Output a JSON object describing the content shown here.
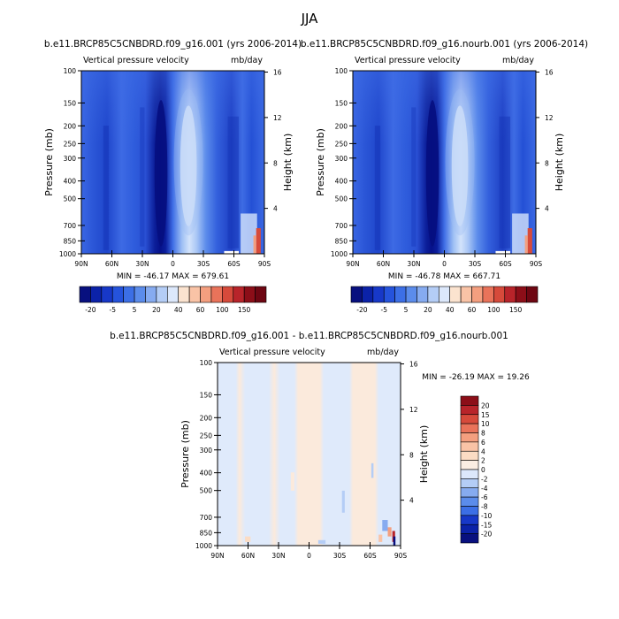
{
  "figure": {
    "title": "JJA"
  },
  "colors": {
    "axis": "#000000",
    "background": "#ffffff"
  },
  "chart_data": [
    {
      "id": "panel-a",
      "type": "heatmap",
      "title": "b.e11.BRCP85C5CNBDRD.f09_g16.001 (yrs 2006-2014)",
      "left_label": "Vertical pressure velocity",
      "right_label": "mb/day",
      "ylabel": "Pressure (mb)",
      "ylabel_right": "Height (km)",
      "x_ticks": [
        "90N",
        "60N",
        "30N",
        "0",
        "30S",
        "60S",
        "90S"
      ],
      "x_tick_values": [
        90,
        60,
        30,
        0,
        -30,
        -60,
        -90
      ],
      "y_ticks": [
        "100",
        "150",
        "200",
        "250",
        "300",
        "400",
        "500",
        "700",
        "850",
        "1000"
      ],
      "y_tick_values": [
        100,
        150,
        200,
        250,
        300,
        400,
        500,
        700,
        850,
        1000
      ],
      "y_scale": "log",
      "ylim": [
        100,
        1000
      ],
      "xlim": [
        90,
        -90
      ],
      "height_ticks": [
        "16",
        "12",
        "8",
        "4"
      ],
      "height_tick_values": [
        16,
        12,
        8,
        4
      ],
      "stats": "MIN = -46.17  MAX = 679.61",
      "colorbar": {
        "orientation": "horizontal",
        "labels": [
          "-20",
          "-5",
          "5",
          "20",
          "40",
          "60",
          "100",
          "150"
        ],
        "levels": [
          -20,
          -15,
          -10,
          -5,
          0,
          5,
          10,
          20,
          30,
          40,
          50,
          60,
          80,
          100,
          120,
          150
        ],
        "colors": [
          "#08107f",
          "#0b22a8",
          "#1738c8",
          "#2553dc",
          "#3c6fe6",
          "#5b8ceb",
          "#86abf0",
          "#b4cdf6",
          "#dce8fb",
          "#fbe3cf",
          "#f9c3a6",
          "#f49f7f",
          "#e9735a",
          "#d64a3b",
          "#b8242a",
          "#8c0e18",
          "#6e0612"
        ]
      },
      "field_note": "Pressure-latitude section of vertical pressure velocity"
    },
    {
      "id": "panel-b",
      "type": "heatmap",
      "title": "b.e11.BRCP85C5CNBDRD.f09_g16.nourb.001 (yrs 2006-2014)",
      "left_label": "Vertical pressure velocity",
      "right_label": "mb/day",
      "ylabel": "Pressure (mb)",
      "ylabel_right": "Height (km)",
      "x_ticks": [
        "90N",
        "60N",
        "30N",
        "0",
        "30S",
        "60S",
        "90S"
      ],
      "x_tick_values": [
        90,
        60,
        30,
        0,
        -30,
        -60,
        -90
      ],
      "y_ticks": [
        "100",
        "150",
        "200",
        "250",
        "300",
        "400",
        "500",
        "700",
        "850",
        "1000"
      ],
      "y_tick_values": [
        100,
        150,
        200,
        250,
        300,
        400,
        500,
        700,
        850,
        1000
      ],
      "y_scale": "log",
      "ylim": [
        100,
        1000
      ],
      "xlim": [
        90,
        -90
      ],
      "height_ticks": [
        "16",
        "12",
        "8",
        "4"
      ],
      "height_tick_values": [
        16,
        12,
        8,
        4
      ],
      "stats": "MIN = -46.78  MAX = 667.71",
      "colorbar": {
        "orientation": "horizontal",
        "labels": [
          "-20",
          "-5",
          "5",
          "20",
          "40",
          "60",
          "100",
          "150"
        ],
        "levels": [
          -20,
          -15,
          -10,
          -5,
          0,
          5,
          10,
          20,
          30,
          40,
          50,
          60,
          80,
          100,
          120,
          150
        ],
        "colors": [
          "#08107f",
          "#0b22a8",
          "#1738c8",
          "#2553dc",
          "#3c6fe6",
          "#5b8ceb",
          "#86abf0",
          "#b4cdf6",
          "#dce8fb",
          "#fbe3cf",
          "#f9c3a6",
          "#f49f7f",
          "#e9735a",
          "#d64a3b",
          "#b8242a",
          "#8c0e18",
          "#6e0612"
        ]
      }
    },
    {
      "id": "panel-diff",
      "type": "heatmap",
      "title": "b.e11.BRCP85C5CNBDRD.f09_g16.001 - b.e11.BRCP85C5CNBDRD.f09_g16.nourb.001",
      "left_label": "Vertical pressure velocity",
      "right_label": "mb/day",
      "ylabel": "Pressure (mb)",
      "ylabel_right": "Height (km)",
      "x_ticks": [
        "90N",
        "60N",
        "30N",
        "0",
        "30S",
        "60S",
        "90S"
      ],
      "x_tick_values": [
        90,
        60,
        30,
        0,
        -30,
        -60,
        -90
      ],
      "y_ticks": [
        "100",
        "150",
        "200",
        "250",
        "300",
        "400",
        "500",
        "700",
        "850",
        "1000"
      ],
      "y_tick_values": [
        100,
        150,
        200,
        250,
        300,
        400,
        500,
        700,
        850,
        1000
      ],
      "y_scale": "log",
      "ylim": [
        100,
        1000
      ],
      "xlim": [
        90,
        -90
      ],
      "height_ticks": [
        "16",
        "12",
        "8",
        "4"
      ],
      "height_tick_values": [
        16,
        12,
        8,
        4
      ],
      "stats": "MIN = -26.19  MAX =  19.26",
      "colorbar": {
        "orientation": "vertical",
        "labels": [
          "20",
          "15",
          "10",
          "8",
          "6",
          "4",
          "2",
          "0",
          "-2",
          "-4",
          "-6",
          "-8",
          "-10",
          "-15",
          "-20"
        ],
        "levels": [
          20,
          15,
          10,
          8,
          6,
          4,
          2,
          0,
          -2,
          -4,
          -6,
          -8,
          -10,
          -15,
          -20
        ],
        "colors": [
          "#8c0e18",
          "#b8242a",
          "#d64a3b",
          "#e9735a",
          "#f49f7f",
          "#f9c3a6",
          "#fbdcc4",
          "#fbeee3",
          "#dce8fb",
          "#b4cdf6",
          "#86abf0",
          "#5b8ceb",
          "#3c6fe6",
          "#1738c8",
          "#0b22a8",
          "#08107f"
        ]
      }
    }
  ]
}
